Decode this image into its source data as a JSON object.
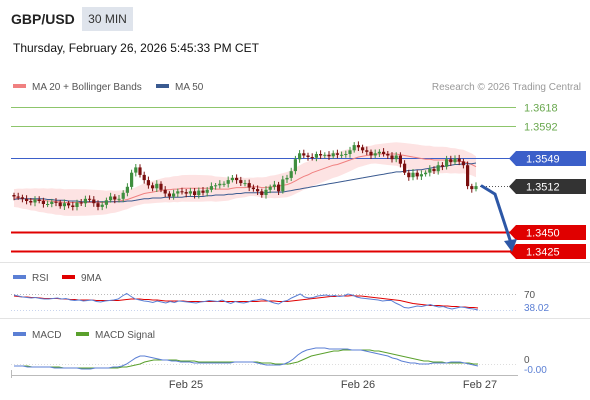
{
  "header": {
    "symbol": "GBP/USD",
    "timeframe": "30 MIN",
    "datetime": "Thursday, February 26, 2026 5:45:33 PM CET"
  },
  "colors": {
    "resistance": "#8dc56b",
    "pivot": "#3b5fc9",
    "support": "#e00000",
    "last_price": "#333333",
    "bullish_candle": "#3f8f3f",
    "bearish_candle": "#7a0f0f",
    "bollinger_fill": "#fde3e3",
    "ma20": "#f08080",
    "ma50": "#3a5a90",
    "rsi": "#5b7fd4",
    "rsi_ma": "#e00000",
    "macd": "#5b7fd4",
    "macd_signal": "#5aa02c",
    "forecast_arrow": "#2d57a6"
  },
  "chart_data": [
    {
      "type": "candlestick",
      "title": "GBP/USD",
      "legend": [
        {
          "name": "MA 20 + Bollinger Bands",
          "color": "#f08080"
        },
        {
          "name": "MA 50",
          "color": "#3a5a90"
        }
      ],
      "credit": "Research © 2026 Trading Central",
      "ylim": [
        1.339,
        1.363
      ],
      "x_ticks": [
        "Feb 25",
        "Feb 26",
        "Feb 27"
      ],
      "levels": [
        {
          "kind": "resistance",
          "value": 1.3618,
          "label": "1.3618"
        },
        {
          "kind": "resistance",
          "value": 1.3592,
          "label": "1.3592"
        },
        {
          "kind": "pivot",
          "value": 1.3549,
          "label": "1.3549"
        },
        {
          "kind": "last",
          "value": 1.3512,
          "label": "1.3512"
        },
        {
          "kind": "support",
          "value": 1.345,
          "label": "1.3450"
        },
        {
          "kind": "support",
          "value": 1.3425,
          "label": "1.3425"
        }
      ],
      "forecast": {
        "from": 1.3512,
        "to": 1.3425
      },
      "closes": [
        1.3498,
        1.3497,
        1.3495,
        1.3492,
        1.349,
        1.3494,
        1.3492,
        1.3488,
        1.3488,
        1.3491,
        1.349,
        1.3485,
        1.3489,
        1.3486,
        1.3484,
        1.349,
        1.3489,
        1.3495,
        1.3494,
        1.3489,
        1.3484,
        1.3487,
        1.3493,
        1.3498,
        1.3494,
        1.3495,
        1.3503,
        1.3511,
        1.353,
        1.3537,
        1.3527,
        1.352,
        1.3513,
        1.3509,
        1.3515,
        1.3507,
        1.3502,
        1.3498,
        1.3502,
        1.3505,
        1.3504,
        1.3502,
        1.3505,
        1.35,
        1.3506,
        1.3503,
        1.3507,
        1.3512,
        1.3513,
        1.3515,
        1.3515,
        1.352,
        1.3523,
        1.352,
        1.3516,
        1.3516,
        1.351,
        1.3508,
        1.3505,
        1.35,
        1.3507,
        1.3511,
        1.3514,
        1.3505,
        1.3521,
        1.3523,
        1.3532,
        1.3548,
        1.3556,
        1.3553,
        1.3551,
        1.355,
        1.3555,
        1.3553,
        1.3554,
        1.3552,
        1.3556,
        1.3554,
        1.3554,
        1.3555,
        1.356,
        1.3567,
        1.3564,
        1.356,
        1.3558,
        1.3553,
        1.3556,
        1.3558,
        1.3555,
        1.3553,
        1.3548,
        1.3553,
        1.3542,
        1.353,
        1.3524,
        1.353,
        1.3525,
        1.3528,
        1.353,
        1.3535,
        1.3532,
        1.354,
        1.3538,
        1.3548,
        1.3544,
        1.3549,
        1.3545,
        1.354,
        1.3512,
        1.3508,
        1.3512
      ],
      "ma50": [
        1.3494,
        1.3495,
        1.3495,
        1.3495,
        1.3495,
        1.3495,
        1.3495,
        1.3495,
        1.3494,
        1.3494,
        1.3493,
        1.3493,
        1.3493,
        1.3492,
        1.3492,
        1.3492,
        1.3491,
        1.3491,
        1.3491,
        1.3491,
        1.3491,
        1.3491,
        1.3491,
        1.3491,
        1.3491,
        1.3491,
        1.3491,
        1.3492,
        1.3492,
        1.3493,
        1.3494,
        1.3495,
        1.3495,
        1.3496,
        1.3496,
        1.3496,
        1.3497,
        1.3497,
        1.3497,
        1.3497,
        1.3497,
        1.3498,
        1.3498,
        1.3498,
        1.3498,
        1.3498,
        1.3499,
        1.3499,
        1.35,
        1.35,
        1.35,
        1.3501,
        1.3501,
        1.3502,
        1.3502,
        1.3503,
        1.3503,
        1.3503,
        1.3503,
        1.3503,
        1.3503,
        1.3504,
        1.3504,
        1.3504,
        1.3504,
        1.3505,
        1.3506,
        1.3507,
        1.3508,
        1.3509,
        1.351,
        1.3511,
        1.3512,
        1.3513,
        1.3514,
        1.3515,
        1.3516,
        1.3517,
        1.3518,
        1.3519,
        1.352,
        1.3521,
        1.3522,
        1.3523,
        1.3524,
        1.3525,
        1.3526,
        1.3527,
        1.3528,
        1.3529,
        1.353,
        1.3531,
        1.3531,
        1.3532,
        1.3533,
        1.3533,
        1.3534,
        1.3534,
        1.3535,
        1.3536,
        1.3537,
        1.3538,
        1.3538,
        1.3539,
        1.354,
        1.3541,
        1.3541,
        1.3542,
        1.3542,
        1.3542,
        1.3543
      ],
      "ma20": [
        1.3496,
        1.3496,
        1.3495,
        1.3495,
        1.3494,
        1.3494,
        1.3493,
        1.3493,
        1.3492,
        1.3492,
        1.3491,
        1.3491,
        1.349,
        1.349,
        1.349,
        1.349,
        1.349,
        1.349,
        1.349,
        1.349,
        1.349,
        1.349,
        1.349,
        1.3491,
        1.3491,
        1.3492,
        1.3493,
        1.3494,
        1.3496,
        1.3498,
        1.35,
        1.3502,
        1.3503,
        1.3504,
        1.3505,
        1.3506,
        1.3507,
        1.3507,
        1.3508,
        1.3508,
        1.3509,
        1.3509,
        1.3509,
        1.3509,
        1.3509,
        1.3509,
        1.3509,
        1.3509,
        1.3508,
        1.3508,
        1.3508,
        1.3508,
        1.3509,
        1.351,
        1.351,
        1.351,
        1.3511,
        1.3511,
        1.3511,
        1.351,
        1.351,
        1.3511,
        1.3511,
        1.3512,
        1.3513,
        1.3514,
        1.3516,
        1.3519,
        1.3522,
        1.3525,
        1.3527,
        1.353,
        1.3532,
        1.3534,
        1.3536,
        1.3538,
        1.354,
        1.3541,
        1.3543,
        1.3545,
        1.3547,
        1.3549,
        1.3551,
        1.3552,
        1.3553,
        1.3554,
        1.3555,
        1.3555,
        1.3555,
        1.3555,
        1.3555,
        1.3555,
        1.3554,
        1.3553,
        1.3552,
        1.3551,
        1.355,
        1.3549,
        1.3548,
        1.3548,
        1.3547,
        1.3547,
        1.3547,
        1.3547,
        1.3546,
        1.3546,
        1.3545,
        1.3545,
        1.3543,
        1.3541,
        1.3538
      ]
    },
    {
      "type": "line",
      "legend": [
        {
          "name": "RSI",
          "color": "#5b7fd4"
        },
        {
          "name": "9MA",
          "color": "#e00000"
        }
      ],
      "ylim": [
        0,
        100
      ],
      "reference": 70,
      "reference_label": "70",
      "last_value": 38.02,
      "last_label": "38.02",
      "rsi": [
        68,
        66,
        64,
        63,
        62,
        63,
        61,
        60,
        60,
        61,
        62,
        60,
        61,
        58,
        57,
        58,
        56,
        57,
        58,
        55,
        54,
        56,
        57,
        58,
        60,
        66,
        71,
        65,
        60,
        58,
        56,
        55,
        53,
        56,
        54,
        52,
        55,
        53,
        56,
        55,
        54,
        53,
        52,
        54,
        55,
        57,
        56,
        55,
        58,
        54,
        51,
        55,
        53,
        52,
        54,
        57,
        58,
        60,
        58,
        55,
        52,
        50,
        55,
        57,
        62,
        66,
        70,
        64,
        62,
        63,
        66,
        67,
        68,
        66,
        67,
        65,
        66,
        70,
        68,
        64,
        62,
        61,
        60,
        59,
        58,
        56,
        57,
        57,
        52,
        48,
        43,
        42,
        44,
        46,
        45,
        47,
        49,
        46,
        44,
        45,
        42,
        40,
        42,
        44,
        43,
        41,
        40,
        38
      ],
      "rsi_ma": [
        66,
        65,
        64,
        64,
        63,
        63,
        62,
        61,
        61,
        61,
        61,
        60,
        60,
        59,
        59,
        58,
        58,
        58,
        58,
        57,
        57,
        57,
        57,
        57,
        57,
        58,
        59,
        60,
        60,
        60,
        59,
        59,
        58,
        58,
        57,
        56,
        56,
        56,
        56,
        56,
        55,
        55,
        55,
        55,
        55,
        55,
        55,
        55,
        55,
        55,
        55,
        55,
        55,
        55,
        55,
        55,
        55,
        56,
        56,
        56,
        56,
        55,
        55,
        55,
        56,
        57,
        58,
        59,
        60,
        61,
        62,
        63,
        64,
        65,
        65,
        66,
        66,
        66,
        67,
        66,
        66,
        65,
        64,
        63,
        62,
        61,
        60,
        59,
        58,
        57,
        55,
        53,
        51,
        50,
        49,
        48,
        47,
        47,
        47,
        46,
        46,
        45,
        45,
        44,
        44,
        43,
        43,
        42
      ]
    },
    {
      "type": "line",
      "legend": [
        {
          "name": "MACD",
          "color": "#5b7fd4"
        },
        {
          "name": "MACD Signal",
          "color": "#5aa02c"
        }
      ],
      "zero_label": "0",
      "last_label": "-0.00",
      "macd": [
        -0.0002,
        -0.0002,
        -0.0002,
        -0.0003,
        -0.0003,
        -0.0003,
        -0.0003,
        -0.0003,
        -0.0003,
        -0.0004,
        -0.0004,
        -0.0004,
        -0.0004,
        -0.0004,
        -0.0004,
        -0.0005,
        -0.0005,
        -0.0005,
        -0.0004,
        -0.0004,
        -0.0004,
        -0.0004,
        -0.0003,
        -0.0003,
        -0.0002,
        0.0,
        0.0003,
        0.0006,
        0.0008,
        0.0008,
        0.0007,
        0.0006,
        0.0005,
        0.0004,
        0.0004,
        0.0003,
        0.0003,
        0.0002,
        0.0002,
        0.0002,
        0.0001,
        0.0001,
        0.0001,
        0.0001,
        0.0001,
        0.0001,
        0.0001,
        0.0001,
        0.0001,
        0.0002,
        0.0002,
        0.0002,
        0.0002,
        0.0002,
        0.0001,
        0.0,
        -0.0001,
        -0.0001,
        -0.0001,
        -0.0001,
        0.0,
        0.0002,
        0.0005,
        0.0009,
        0.0012,
        0.0014,
        0.0015,
        0.0016,
        0.0016,
        0.0016,
        0.0015,
        0.0015,
        0.0015,
        0.0015,
        0.0015,
        0.0014,
        0.0014,
        0.0014,
        0.0013,
        0.0012,
        0.0011,
        0.001,
        0.0009,
        0.0008,
        0.0006,
        0.0005,
        0.0003,
        0.0002,
        0.0001,
        0.0001,
        0.0,
        0.0,
        0.0,
        0.0001,
        0.0001,
        0.0001,
        0.0001,
        0.0002,
        0.0002,
        0.0002,
        0.0001,
        0.0,
        -0.0001,
        -0.0002
      ],
      "macd_signal": [
        -0.0002,
        -0.0002,
        -0.0002,
        -0.0002,
        -0.0003,
        -0.0003,
        -0.0003,
        -0.0003,
        -0.0003,
        -0.0003,
        -0.0003,
        -0.0004,
        -0.0004,
        -0.0004,
        -0.0004,
        -0.0004,
        -0.0004,
        -0.0004,
        -0.0004,
        -0.0004,
        -0.0004,
        -0.0004,
        -0.0004,
        -0.0004,
        -0.0003,
        -0.0003,
        -0.0002,
        -0.0001,
        0.0,
        0.0002,
        0.0003,
        0.0004,
        0.0004,
        0.0004,
        0.0004,
        0.0004,
        0.0004,
        0.0003,
        0.0003,
        0.0003,
        0.0003,
        0.0002,
        0.0002,
        0.0002,
        0.0002,
        0.0002,
        0.0002,
        0.0002,
        0.0002,
        0.0002,
        0.0002,
        0.0002,
        0.0002,
        0.0002,
        0.0002,
        0.0001,
        0.0001,
        0.0001,
        0.0,
        0.0,
        0.0,
        0.0,
        0.0001,
        0.0002,
        0.0004,
        0.0006,
        0.0008,
        0.0009,
        0.001,
        0.0011,
        0.0012,
        0.0013,
        0.0013,
        0.0014,
        0.0014,
        0.0014,
        0.0014,
        0.0014,
        0.0014,
        0.0014,
        0.0013,
        0.0013,
        0.0012,
        0.0011,
        0.001,
        0.0009,
        0.0008,
        0.0007,
        0.0006,
        0.0005,
        0.0004,
        0.0003,
        0.0003,
        0.0002,
        0.0002,
        0.0002,
        0.0001,
        0.0001,
        0.0001,
        0.0001,
        0.0001,
        0.0001,
        0.0,
        0.0
      ]
    }
  ]
}
